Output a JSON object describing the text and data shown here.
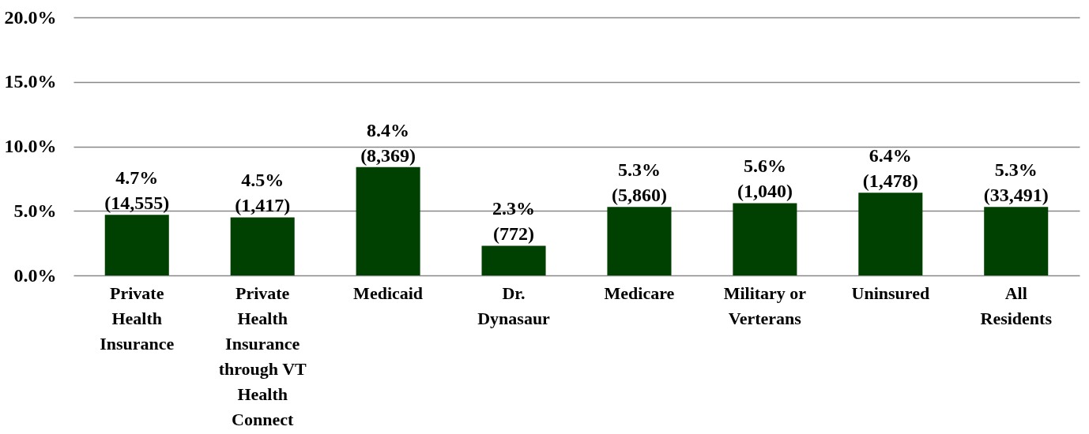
{
  "chart_data": {
    "type": "bar",
    "categories": [
      "Private Health Insurance",
      "Private Health Insurance through VT Health Connect",
      "Medicaid",
      "Dr. Dynasaur",
      "Medicare",
      "Military or Verterans",
      "Uninsured",
      "All Residents"
    ],
    "values": [
      4.7,
      4.5,
      8.4,
      2.3,
      5.3,
      5.6,
      6.4,
      5.3
    ],
    "value_labels": [
      "4.7% (14,555)",
      "4.5% (1,417)",
      "8.4% (8,369)",
      "2.3% (772)",
      "5.3% (5,860)",
      "5.6% (1,040)",
      "6.4% (1,478)",
      "5.3% (33,491)"
    ],
    "color": "#004000",
    "ylim": [
      0,
      20
    ],
    "yticks": [
      {
        "value": 0,
        "label": "0.0%"
      },
      {
        "value": 5,
        "label": "5.0%"
      },
      {
        "value": 10,
        "label": "10.0%"
      },
      {
        "value": 15,
        "label": "15.0%"
      },
      {
        "value": 20,
        "label": "20.0%"
      }
    ],
    "grid": "y"
  }
}
